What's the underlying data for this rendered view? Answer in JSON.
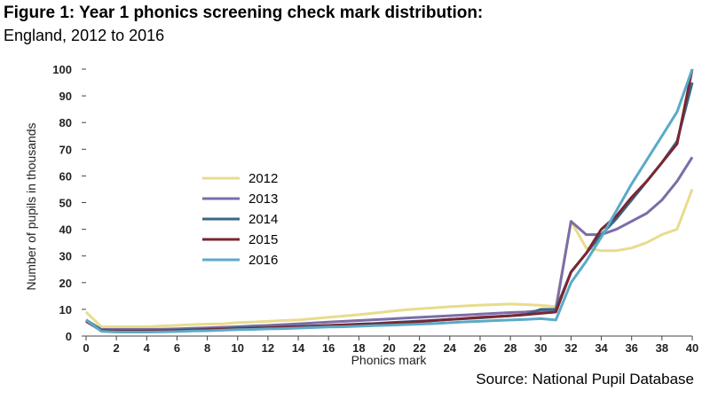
{
  "figure": {
    "title": "Figure 1: Year 1 phonics screening check mark distribution:",
    "subtitle": "England, 2012 to 2016",
    "source": "Source: National Pupil Database"
  },
  "chart_data": {
    "type": "line",
    "xlabel": "Phonics mark",
    "ylabel": "Number of pupils in thousands",
    "xlim": [
      0,
      40
    ],
    "ylim": [
      0,
      100
    ],
    "x_ticks": [
      0,
      2,
      4,
      6,
      8,
      10,
      12,
      14,
      16,
      18,
      20,
      22,
      24,
      26,
      28,
      30,
      32,
      34,
      36,
      38,
      40
    ],
    "y_ticks": [
      0,
      10,
      20,
      30,
      40,
      50,
      60,
      70,
      80,
      90,
      100
    ],
    "grid": false,
    "legend_position": "center-left",
    "x": [
      0,
      1,
      2,
      3,
      4,
      5,
      6,
      7,
      8,
      9,
      10,
      11,
      12,
      13,
      14,
      15,
      16,
      17,
      18,
      19,
      20,
      21,
      22,
      23,
      24,
      25,
      26,
      27,
      28,
      29,
      30,
      31,
      32,
      33,
      34,
      35,
      36,
      37,
      38,
      39,
      40
    ],
    "series": [
      {
        "name": "2012",
        "color": "#e8dc8c",
        "values": [
          9,
          3.5,
          3.5,
          3.5,
          3.5,
          3.8,
          4,
          4.3,
          4.5,
          4.6,
          5,
          5.2,
          5.5,
          5.8,
          6,
          6.5,
          7,
          7.5,
          8,
          8.6,
          9.2,
          9.8,
          10.2,
          10.6,
          11,
          11.3,
          11.6,
          11.8,
          12,
          11.8,
          11.5,
          11,
          43,
          33,
          32,
          32,
          33,
          35,
          38,
          40,
          55
        ]
      },
      {
        "name": "2013",
        "color": "#7b6da8",
        "values": [
          6,
          2.5,
          2.5,
          2.5,
          2.5,
          2.6,
          2.7,
          2.9,
          3.1,
          3.3,
          3.5,
          3.8,
          4,
          4.3,
          4.6,
          4.9,
          5.2,
          5.5,
          5.8,
          6.1,
          6.4,
          6.7,
          7,
          7.3,
          7.6,
          7.9,
          8.2,
          8.5,
          8.8,
          9,
          9.5,
          10,
          43,
          38,
          38,
          40,
          43,
          46,
          51,
          58,
          67
        ]
      },
      {
        "name": "2014",
        "color": "#3a6687",
        "values": [
          6,
          2.2,
          2,
          2,
          2,
          2.1,
          2.2,
          2.4,
          2.6,
          2.8,
          3,
          3.1,
          3.2,
          3.4,
          3.6,
          3.8,
          4,
          4.2,
          4.5,
          4.7,
          5,
          5.3,
          5.6,
          5.9,
          6.2,
          6.5,
          6.8,
          7.2,
          7.6,
          8,
          10,
          10,
          24,
          31,
          38,
          44,
          51,
          58,
          65,
          73,
          95
        ]
      },
      {
        "name": "2015",
        "color": "#7a2632",
        "values": [
          5.5,
          2,
          1.8,
          1.8,
          1.8,
          1.9,
          2,
          2.2,
          2.4,
          2.5,
          2.7,
          2.9,
          3.1,
          3.3,
          3.5,
          3.7,
          4,
          4.2,
          4.4,
          4.6,
          4.8,
          5.1,
          5.4,
          5.8,
          6.2,
          6.6,
          7,
          7.3,
          7.6,
          8,
          8.5,
          9,
          24,
          31,
          40,
          45,
          52,
          58,
          65,
          72,
          100
        ]
      },
      {
        "name": "2016",
        "color": "#5aaac8",
        "values": [
          6,
          1.8,
          1.5,
          1.5,
          1.5,
          1.6,
          1.7,
          1.9,
          2,
          2.2,
          2.4,
          2.5,
          2.7,
          2.8,
          3,
          3.2,
          3.4,
          3.5,
          3.7,
          3.9,
          4.1,
          4.3,
          4.5,
          4.7,
          5,
          5.3,
          5.5,
          5.8,
          6,
          6.2,
          6.5,
          6,
          20,
          28,
          37,
          47,
          57,
          66,
          75,
          84,
          100
        ]
      }
    ]
  }
}
